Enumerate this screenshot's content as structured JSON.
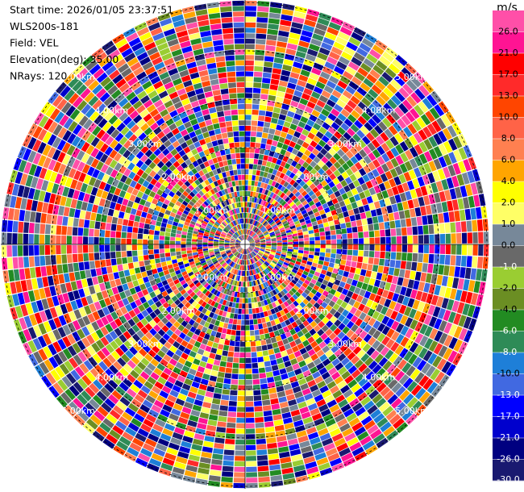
{
  "chart_data": {
    "type": "ppi",
    "info": [
      "Start time: 2026/01/05 23:37:51",
      "WLS200s-181",
      "Field: VEL",
      "Elevation(deg): 35.00",
      "NRays: 120"
    ],
    "range_lim": [
      0,
      5
    ],
    "range_rings": [
      {
        "value": 1,
        "label": "1.00km"
      },
      {
        "value": 2,
        "label": "2.00km"
      },
      {
        "value": 3,
        "label": "3.00km"
      },
      {
        "value": 4,
        "label": "4.00km"
      },
      {
        "value": 5,
        "label": "5.00km"
      }
    ],
    "colorbar": {
      "unit": "m/s",
      "ticks": [
        {
          "value": 26,
          "label": "26.0"
        },
        {
          "value": 21,
          "label": "21.0"
        },
        {
          "value": 17,
          "label": "17.0"
        },
        {
          "value": 13,
          "label": "13.0"
        },
        {
          "value": 10,
          "label": "10.0"
        },
        {
          "value": 8,
          "label": "8.0"
        },
        {
          "value": 6,
          "label": "6.0"
        },
        {
          "value": 4,
          "label": "4.0"
        },
        {
          "value": 2,
          "label": "2.0"
        },
        {
          "value": 1,
          "label": "1.0"
        },
        {
          "value": 0,
          "label": "0.0"
        },
        {
          "value": -1,
          "label": "-1.0"
        },
        {
          "value": -2,
          "label": "-2.0"
        },
        {
          "value": -4,
          "label": "-4.0"
        },
        {
          "value": -6,
          "label": "-6.0"
        },
        {
          "value": -8,
          "label": "-8.0"
        },
        {
          "value": -10,
          "label": "-10.0"
        },
        {
          "value": -13,
          "label": "-13.0"
        },
        {
          "value": -17,
          "label": "-17.0"
        },
        {
          "value": -21,
          "label": "-21.0"
        },
        {
          "value": -26,
          "label": "-26.0"
        },
        {
          "value": -30,
          "label": "-30.0"
        }
      ],
      "colors": [
        "#ff4fa8",
        "#ff1493",
        "#ff0000",
        "#ff2a2a",
        "#ff4500",
        "#ff6347",
        "#ff8050",
        "#ffa500",
        "#ffff00",
        "#ffff66",
        "#778899",
        "#696969",
        "#9acd32",
        "#6b8e23",
        "#228b22",
        "#2e8b57",
        "#1e7fd8",
        "#4169e1",
        "#0000ff",
        "#0000cd",
        "#000080",
        "#191970"
      ]
    }
  }
}
